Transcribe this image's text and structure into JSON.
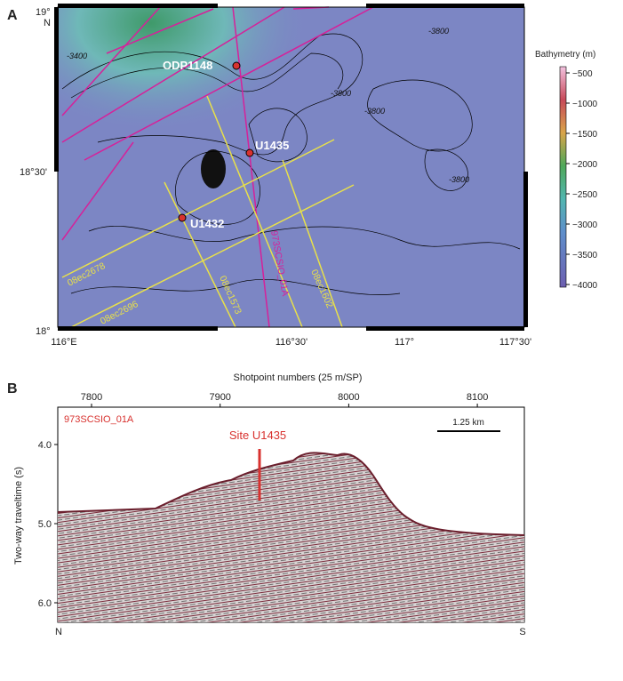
{
  "panel_a": {
    "label": "A",
    "lat_labels": [
      "19°",
      "N",
      "18°30'",
      "18°"
    ],
    "lon_labels": [
      "116°E",
      "116°30'",
      "117°",
      "117°30'"
    ],
    "sites": [
      "ODP1148",
      "U1435",
      "U1432"
    ],
    "lines": [
      "08ec2678",
      "08ec2696",
      "08ec1573",
      "973SCSIO_01A",
      "08ec1602"
    ],
    "contour_labels": [
      "-3400",
      "-3800",
      "-3800",
      "-3800",
      "-3800"
    ],
    "colorbar": {
      "title": "Bathymetry (m)",
      "ticks": [
        "−500",
        "−1000",
        "−1500",
        "−2000",
        "−2500",
        "−3000",
        "−3500",
        "−4000"
      ]
    }
  },
  "panel_b": {
    "label": "B",
    "x_title": "Shotpoint numbers (25 m/SP)",
    "x_ticks": [
      "7800",
      "7900",
      "8000",
      "8100"
    ],
    "y_title": "Two-way traveltime (s)",
    "y_ticks": [
      "4.0",
      "5.0",
      "6.0"
    ],
    "line_name": "973SCSIO_01A",
    "site_label": "Site U1435",
    "scale_label": "1.25 km",
    "start": "N",
    "end": "S"
  }
}
